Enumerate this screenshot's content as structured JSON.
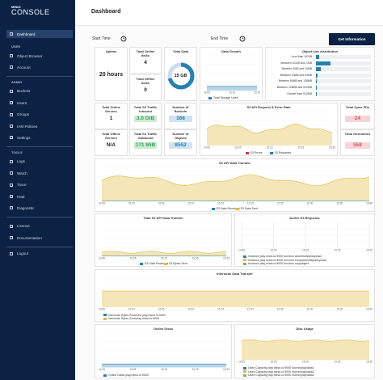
{
  "sidebar": {
    "brand": "MINIO",
    "product": "CONSOLE",
    "top_item": "Dashboard",
    "groups": [
      {
        "heading": "USER",
        "items": [
          "Object Browser",
          "Account"
        ]
      },
      {
        "heading": "ADMIN",
        "items": [
          "Buckets",
          "Users",
          "Groups",
          "IAM Policies",
          "Settings"
        ]
      },
      {
        "heading": "TOOLS",
        "items": [
          "Logs",
          "Watch",
          "Trace",
          "Heal",
          "Diagnostic"
        ]
      }
    ],
    "footer": [
      "License",
      "Documentation"
    ],
    "logout": "Logout"
  },
  "header": {
    "title": "Dashboard"
  },
  "filters": {
    "start_label": "Start Time",
    "end_label": "End Time",
    "button": "Get Information"
  },
  "stats": [
    {
      "title": "Uptime",
      "value": "20 hours"
    },
    {
      "title": "Total Online disks",
      "value": "4"
    },
    {
      "title": "Total Offline disks",
      "value": "0"
    },
    {
      "title": "Total Data",
      "value": "15 GB"
    },
    {
      "title": "Total Online Servers",
      "value": "1"
    },
    {
      "title": "Total Offline Servers",
      "value": "N/A"
    },
    {
      "title": "Total S3 Traffic Inbound",
      "value": "3.0 GiB"
    },
    {
      "title": "Total S3 Traffic Outbound",
      "value": "171 MiB"
    },
    {
      "title": "Number of Buckets",
      "value": "168"
    },
    {
      "title": "Number of Objects",
      "value": "8552"
    },
    {
      "title": "Total Open FDs",
      "value": "24"
    },
    {
      "title": "Total Goroutines",
      "value": "558"
    }
  ],
  "size_distribution": {
    "title": "Object size distribution",
    "labels": [
      "Less than 1024B",
      "Between 1024B and 1MB",
      "Between 1MB and 10MB",
      "Between 10MB and 64MB",
      "Between 64MB and 128MB",
      "Between 128MB and 512MB",
      "Greater than 512MB"
    ]
  },
  "charts": [
    {
      "title": "Data Growth",
      "legend": [
        {
          "label": "Total Storage Used",
          "color": "#2781b0"
        }
      ]
    },
    {
      "title": "S3 API Request & Error Rate",
      "legend": [
        {
          "label": "S3 Errors",
          "color": "#c83b51"
        },
        {
          "label": "S3 Requests",
          "color": "#2781b0"
        }
      ]
    },
    {
      "title": "S3 API Data Transfer",
      "legend": [
        {
          "label": "S3 Data Received",
          "color": "#2781b0"
        },
        {
          "label": "S3 Data Sent",
          "color": "#e0b84a"
        }
      ]
    },
    {
      "title": "Total S3 API Data Transfer",
      "legend": [
        {
          "label": "S3 Data Received",
          "color": "#2781b0"
        },
        {
          "label": "S3 Bytes Sent",
          "color": "#e0b84a"
        }
      ]
    },
    {
      "title": "Active S3 Requests",
      "legend": [
        {
          "label": "Instance play.minio.io:9000 function abortmultipartupload",
          "color": "#2781b0"
        },
        {
          "label": "Instance play.minio.io:9000 function completemultipartupload",
          "color": "#e0b84a"
        },
        {
          "label": "Instance play.minio.io:9000 function copyobject",
          "color": "#7fb069"
        }
      ]
    },
    {
      "title": "Internode Data Transfer",
      "legend": [
        {
          "label": "Internode Bytes Received play.minio.io:9000",
          "color": "#2781b0"
        },
        {
          "label": "Internode Bytes Sent play.minio.io:9000",
          "color": "#e0b84a"
        }
      ]
    },
    {
      "title": "Online Disks",
      "legend": [
        {
          "label": "Online Disks play.minio.io:9000",
          "color": "#2781b0"
        }
      ]
    },
    {
      "title": "Disk Usage",
      "legend": [
        {
          "label": "Used Capacity play.minio.io:9000 /home/play/data1",
          "color": "#2781b0"
        },
        {
          "label": "Used Capacity play.minio.io:9000 /home/play/data2",
          "color": "#e0b84a"
        },
        {
          "label": "Used Capacity play.minio.io:9000 /home/play/data3",
          "color": "#7fb069"
        }
      ]
    }
  ],
  "time_ticks": [
    "14:55",
    "15:00",
    "15:05",
    "15:10",
    "15:15",
    "15:20",
    "15:25",
    "15:30",
    "15:35",
    "15:40"
  ]
}
